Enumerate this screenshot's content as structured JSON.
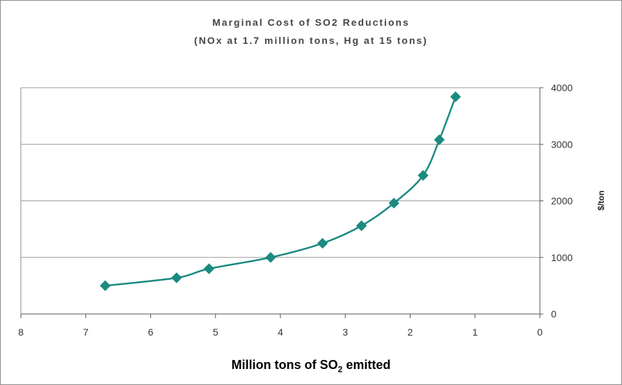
{
  "chart_data": {
    "type": "line",
    "title": "Marginal Cost of SO2 Reductions",
    "subtitle": "(NOx at 1.7 million tons, Hg at 15 tons)",
    "xlabel_main": "Million tons of SO",
    "xlabel_sub": "2",
    "xlabel_tail": " emitted",
    "ylabel": "$/ton",
    "xlim": [
      8,
      0
    ],
    "ylim": [
      0,
      4000
    ],
    "x_reversed": true,
    "x_ticks": [
      8,
      7,
      6,
      5,
      4,
      3,
      2,
      1,
      0
    ],
    "y_ticks": [
      0,
      1000,
      2000,
      3000,
      4000
    ],
    "y_axis_side": "right",
    "grid": "horizontal",
    "series": [
      {
        "color": "#1b8a80",
        "marker": "diamond",
        "points": [
          {
            "x": 6.7,
            "y": 500
          },
          {
            "x": 5.6,
            "y": 640
          },
          {
            "x": 5.1,
            "y": 800
          },
          {
            "x": 4.15,
            "y": 1000
          },
          {
            "x": 3.35,
            "y": 1250
          },
          {
            "x": 2.75,
            "y": 1560
          },
          {
            "x": 2.25,
            "y": 1960
          },
          {
            "x": 1.8,
            "y": 2450
          },
          {
            "x": 1.55,
            "y": 3080
          },
          {
            "x": 1.3,
            "y": 3840
          }
        ]
      }
    ]
  }
}
